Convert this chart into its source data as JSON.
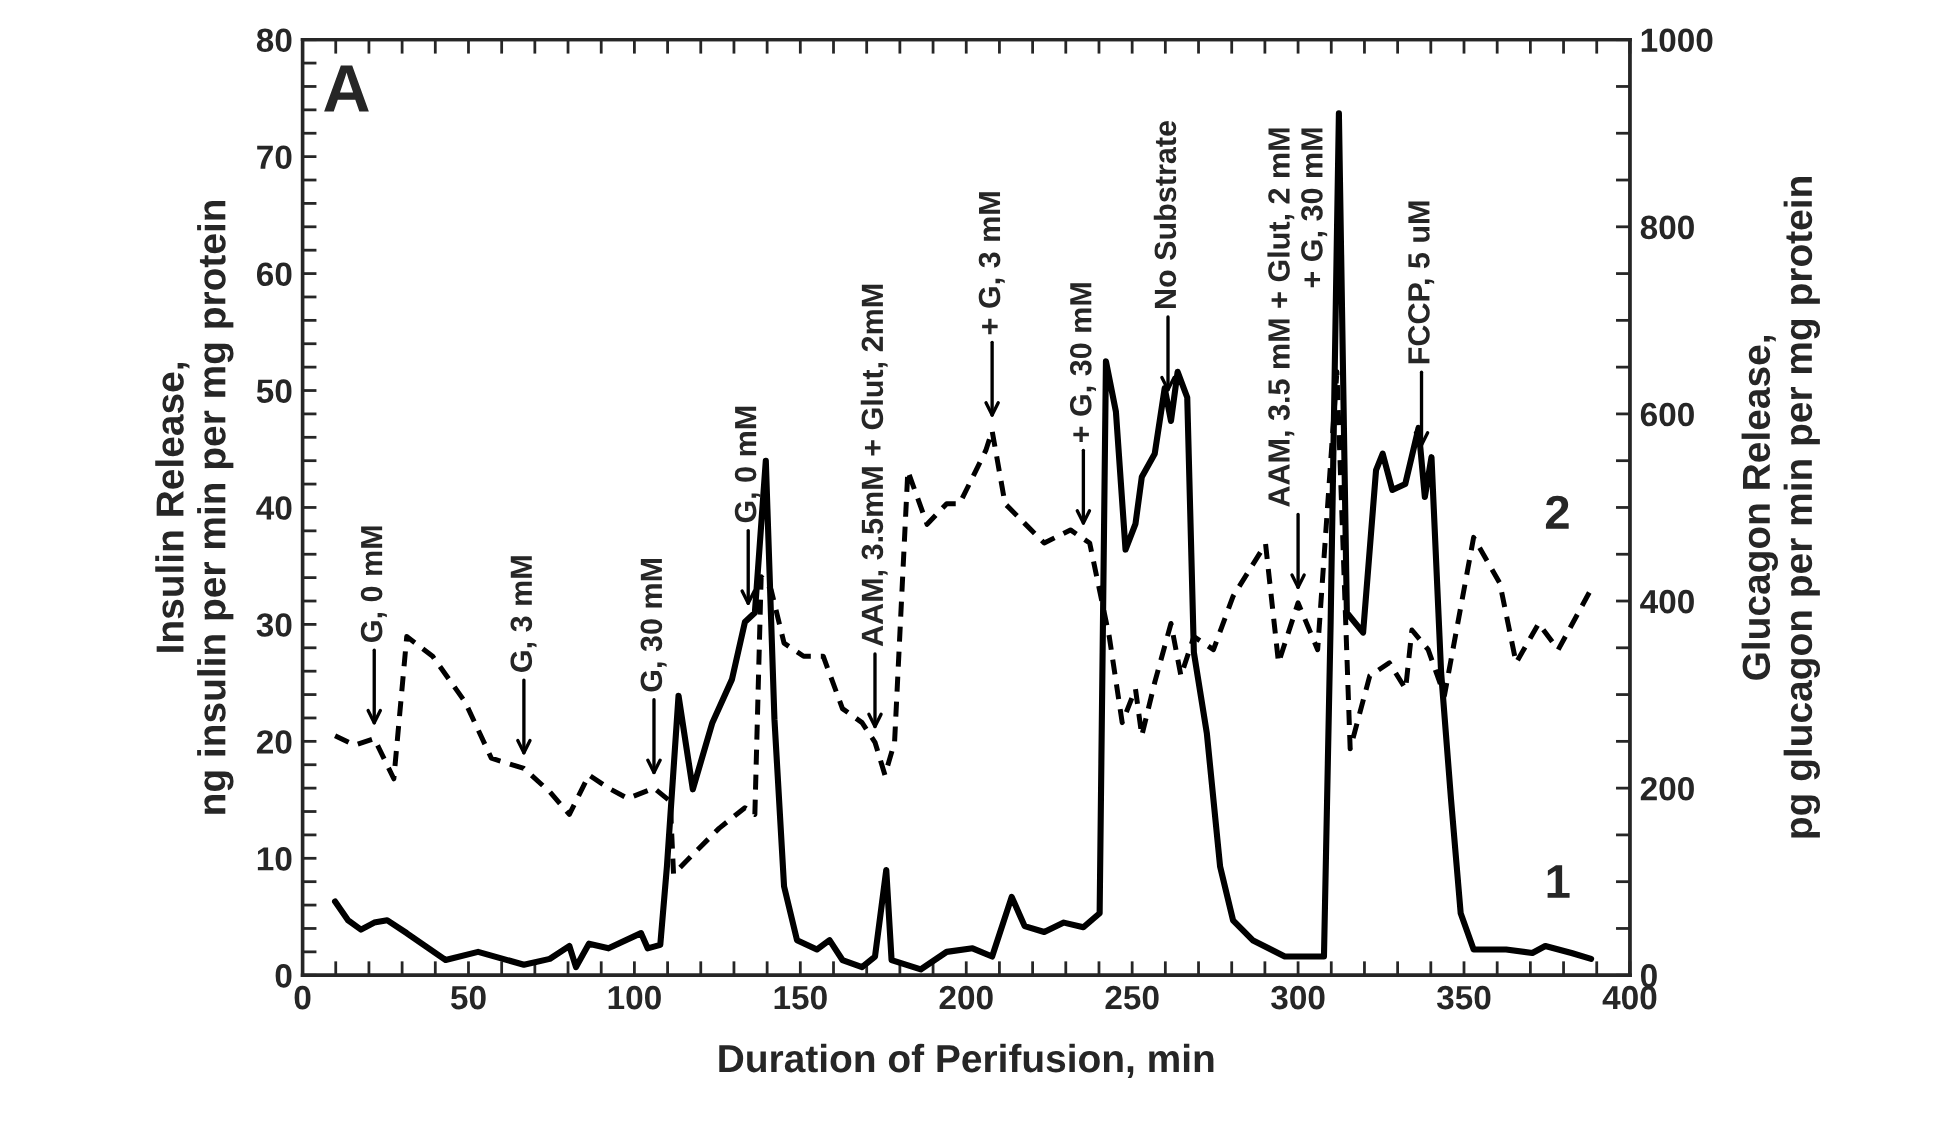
{
  "chart_data": {
    "type": "line",
    "xlabel": "Duration of Perifusion, min",
    "ylabel": "Insulin Release,\nng insulin per min per mg protein",
    "y2label": "Glucagon Release,\npg glucagon per min per mg protein",
    "xlim": [
      0,
      400
    ],
    "ylim": [
      0,
      80
    ],
    "y2lim": [
      0,
      1000
    ],
    "xticks": [
      0,
      {
        "value": 10,
        "label": null
      },
      {
        "value": 20,
        "label": null
      },
      {
        "value": 30,
        "label": null
      },
      {
        "value": 40,
        "label": null
      },
      50,
      {
        "value": 60,
        "label": null
      },
      {
        "value": 70,
        "label": null
      },
      {
        "value": 80,
        "label": null
      },
      {
        "value": 90,
        "label": null
      },
      100,
      {
        "value": 110,
        "label": null
      },
      {
        "value": 120,
        "label": null
      },
      {
        "value": 130,
        "label": null
      },
      {
        "value": 140,
        "label": null
      },
      150,
      {
        "value": 160,
        "label": null
      },
      {
        "value": 170,
        "label": null
      },
      {
        "value": 180,
        "label": null
      },
      {
        "value": 190,
        "label": null
      },
      200,
      {
        "value": 210,
        "label": null
      },
      {
        "value": 220,
        "label": null
      },
      {
        "value": 230,
        "label": null
      },
      {
        "value": 240,
        "label": null
      },
      250,
      {
        "value": 260,
        "label": null
      },
      {
        "value": 270,
        "label": null
      },
      {
        "value": 280,
        "label": null
      },
      {
        "value": 290,
        "label": null
      },
      300,
      {
        "value": 310,
        "label": null
      },
      {
        "value": 320,
        "label": null
      },
      {
        "value": 330,
        "label": null
      },
      {
        "value": 340,
        "label": null
      },
      350,
      {
        "value": 360,
        "label": null
      },
      {
        "value": 370,
        "label": null
      },
      {
        "value": 380,
        "label": null
      },
      {
        "value": 390,
        "label": null
      },
      400
    ],
    "yticks": [
      0,
      {
        "value": 2,
        "label": null
      },
      {
        "value": 4,
        "label": null
      },
      {
        "value": 6,
        "label": null
      },
      {
        "value": 8,
        "label": null
      },
      10,
      {
        "value": 12,
        "label": null
      },
      {
        "value": 14,
        "label": null
      },
      {
        "value": 16,
        "label": null
      },
      {
        "value": 18,
        "label": null
      },
      20,
      {
        "value": 22,
        "label": null
      },
      {
        "value": 24,
        "label": null
      },
      {
        "value": 26,
        "label": null
      },
      {
        "value": 28,
        "label": null
      },
      30,
      {
        "value": 32,
        "label": null
      },
      {
        "value": 34,
        "label": null
      },
      {
        "value": 36,
        "label": null
      },
      {
        "value": 38,
        "label": null
      },
      40,
      {
        "value": 42,
        "label": null
      },
      {
        "value": 44,
        "label": null
      },
      {
        "value": 46,
        "label": null
      },
      {
        "value": 48,
        "label": null
      },
      50,
      {
        "value": 52,
        "label": null
      },
      {
        "value": 54,
        "label": null
      },
      {
        "value": 56,
        "label": null
      },
      {
        "value": 58,
        "label": null
      },
      60,
      {
        "value": 62,
        "label": null
      },
      {
        "value": 64,
        "label": null
      },
      {
        "value": 66,
        "label": null
      },
      {
        "value": 68,
        "label": null
      },
      70,
      {
        "value": 72,
        "label": null
      },
      {
        "value": 74,
        "label": null
      },
      {
        "value": 76,
        "label": null
      },
      {
        "value": 78,
        "label": null
      },
      80
    ],
    "y2ticks": [
      0,
      {
        "value": 50,
        "label": null
      },
      {
        "value": 100,
        "label": null
      },
      {
        "value": 150,
        "label": null
      },
      200,
      {
        "value": 250,
        "label": null
      },
      {
        "value": 300,
        "label": null
      },
      {
        "value": 350,
        "label": null
      },
      400,
      {
        "value": 450,
        "label": null
      },
      {
        "value": 500,
        "label": null
      },
      {
        "value": 550,
        "label": null
      },
      600,
      {
        "value": 650,
        "label": null
      },
      {
        "value": 700,
        "label": null
      },
      {
        "value": 750,
        "label": null
      },
      800,
      {
        "value": 850,
        "label": null
      },
      {
        "value": 900,
        "label": null
      },
      {
        "value": 950,
        "label": null
      },
      1000
    ],
    "grid": false,
    "legend": false,
    "marker": "none",
    "series": [
      {
        "name": "1",
        "color": "#000000",
        "line_style": "solid",
        "axis": "y",
        "x": [
          9.8,
          13.7,
          17.6,
          21.6,
          25.5,
          31.4,
          43.1,
          52.9,
          66.7,
          74.5,
          80.4,
          82.4,
          86.3,
          92.2,
          102,
          104,
          107.8,
          109.8,
          113.3,
          117.6,
          123.5,
          129.4,
          133.3,
          136.3,
          139.6,
          142.2,
          145.1,
          149,
          155,
          158.8,
          162.7,
          168.6,
          172.5,
          175.9,
          177.5,
          186.3,
          194.1,
          201.9,
          207.8,
          213.7,
          217.6,
          223.5,
          229.4,
          235.3,
          240.2,
          242.1,
          245.1,
          248,
          251,
          252.9,
          256.8,
          259.8,
          261.7,
          263.7,
          266.6,
          268.6,
          272.5,
          276.5,
          280.4,
          286.3,
          296,
          307.8,
          309.8,
          312.3,
          314.7,
          319.6,
          323.5,
          325.5,
          328.4,
          332.3,
          336.3,
          338.2,
          340.2,
          343.1,
          346.1,
          349,
          352.9,
          362.7,
          370.6,
          374.5,
          382.4,
          388.3
        ],
        "values": [
          6.3,
          4.7,
          3.9,
          4.5,
          4.7,
          3.6,
          1.3,
          2.0,
          0.9,
          1.4,
          2.5,
          0.7,
          2.7,
          2.3,
          3.6,
          2.3,
          2.6,
          9.3,
          23.9,
          15.9,
          21.6,
          25.3,
          30.2,
          31,
          44,
          21.9,
          7.6,
          3.0,
          2.2,
          3.0,
          1.3,
          0.7,
          1.6,
          9.0,
          1.3,
          0.5,
          2.0,
          2.3,
          1.6,
          6.7,
          4.2,
          3.7,
          4.5,
          4.1,
          5.3,
          52.5,
          48.2,
          36.4,
          38.6,
          42.6,
          44.6,
          50.2,
          47.4,
          51.6,
          49.4,
          27.6,
          20.7,
          9.3,
          4.7,
          3.0,
          1.6,
          1.6,
          30,
          73.7,
          31,
          29.3,
          43.2,
          44.6,
          41.5,
          42.0,
          46.8,
          40.9,
          44.3,
          25.9,
          15,
          5.3,
          2.2,
          2.2,
          1.9,
          2.5,
          1.9,
          1.4
        ]
      },
      {
        "name": "2",
        "color": "#000000",
        "line_style": "dashed",
        "axis": "y2",
        "x": [
          9.8,
          15.7,
          21.6,
          27.5,
          31.4,
          39.2,
          49,
          56.9,
          66.7,
          74.5,
          80.4,
          86.3,
          92.2,
          98,
          105.9,
          110.8,
          111.8,
          117.6,
          125.5,
          133.3,
          136.3,
          138.2,
          141.2,
          145.1,
          151,
          156.9,
          162.7,
          168.6,
          172.5,
          175.5,
          178.4,
          182.4,
          188.2,
          194.1,
          198,
          205.9,
          207.8,
          211.7,
          217.6,
          223.5,
          231.4,
          237.2,
          243.1,
          247,
          251,
          252.9,
          256.8,
          261.7,
          264.7,
          268.6,
          274.5,
          280.4,
          290.2,
          294.1,
          300,
          305.9,
          311.7,
          315.7,
          321.6,
          327.5,
          332.4,
          334.3,
          339.2,
          344.1,
          352.9,
          360.8,
          365.7,
          372.5,
          378.4,
          388.2
        ],
        "values": [
          256,
          246,
          253,
          210,
          362,
          341,
          292,
          232,
          221,
          196,
          172,
          214,
          200,
          189,
          200,
          186,
          108,
          129,
          157,
          179,
          172,
          426,
          412,
          355,
          341,
          341,
          285,
          270,
          249,
          214,
          249,
          539,
          482,
          504,
          504,
          561,
          582,
          504,
          483,
          462,
          476,
          462,
          362,
          270,
          306,
          256,
          313,
          376,
          320,
          362,
          348,
          405,
          461,
          334,
          398,
          348,
          645,
          242,
          320,
          334,
          306,
          369,
          348,
          299,
          468,
          419,
          334,
          376,
          348,
          412
        ]
      }
    ],
    "annotations": [
      "A",
      {
        "text": "G, 0 mM",
        "x": 21.6
      },
      {
        "text": "G, 3 mM",
        "x": 66.7
      },
      {
        "text": "G, 30 mM",
        "x": 105.9
      },
      {
        "text": "G, 0 mM",
        "x": 134.3
      },
      {
        "text": "AAM, 3.5mM + Glut, 2mM",
        "x": 172.5
      },
      {
        "text": "+ G, 3 mM",
        "x": 207.8
      },
      {
        "text": "+ G, 30 mM",
        "x": 235.3
      },
      {
        "text": "No Substrate",
        "x": 260.8
      },
      {
        "text": "AAM, 3.5 mM + Glut, 2 mM\n+ G, 30 mM",
        "x": 300
      },
      {
        "text": "FCCP, 5 uM",
        "x": 337.2
      }
    ]
  }
}
